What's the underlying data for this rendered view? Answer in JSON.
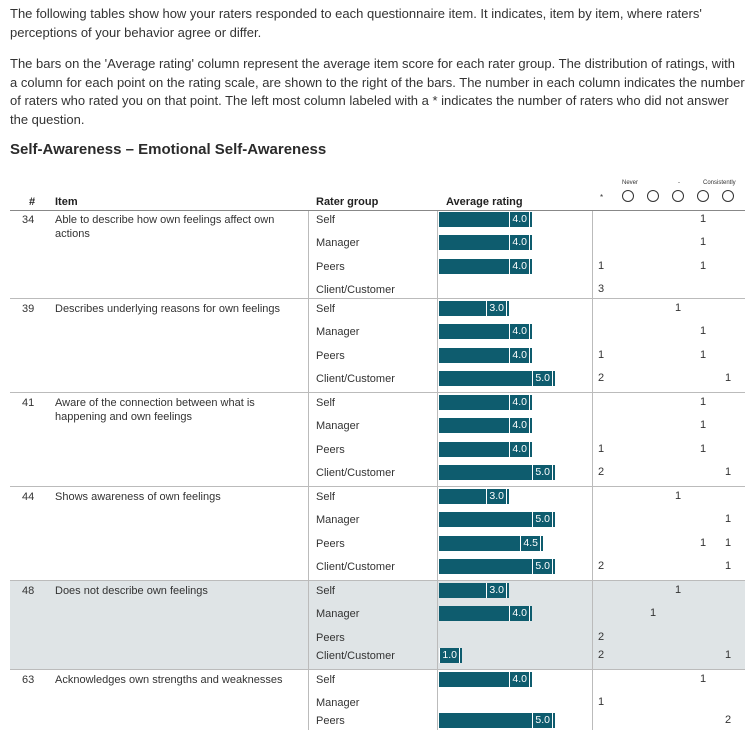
{
  "intro": {
    "p1": "The following tables show how your raters responded to each questionnaire item. It indicates, item by item, where raters' perceptions of your behavior agree or differ.",
    "p2": "The bars on the 'Average rating' column represent the average item score for each rater group. The distribution of ratings, with a column for each point on the rating scale, are shown to the right of the bars. The number in each column indicates the number of raters who rated you on that point. The left most column labeled with a * indicates the number of raters who did not answer the question."
  },
  "section_title": "Self-Awareness – Emotional Self-Awareness",
  "scale": {
    "never": "Never",
    "mid": "-",
    "consistently": "Consistently",
    "no_answer": "*"
  },
  "headers": {
    "num": "#",
    "item": "Item",
    "rater_group": "Rater group",
    "avg": "Average rating"
  },
  "scale_max": 5,
  "items": [
    {
      "num": "34",
      "text": "Able to describe how own feelings affect own actions",
      "shaded": false,
      "rows": [
        {
          "group": "Self",
          "avg": 4.0,
          "avg_label": "4.0",
          "counts": [
            "",
            "",
            "",
            "",
            "1",
            ""
          ]
        },
        {
          "group": "Manager",
          "avg": 4.0,
          "avg_label": "4.0",
          "counts": [
            "",
            "",
            "",
            "",
            "1",
            ""
          ]
        },
        {
          "group": "Peers",
          "avg": 4.0,
          "avg_label": "4.0",
          "counts": [
            "1",
            "",
            "",
            "",
            "1",
            ""
          ]
        },
        {
          "group": "Client/Customer",
          "avg": null,
          "avg_label": "",
          "counts": [
            "3",
            "",
            "",
            "",
            "",
            ""
          ]
        }
      ]
    },
    {
      "num": "39",
      "text": "Describes underlying reasons for own feelings",
      "shaded": false,
      "rows": [
        {
          "group": "Self",
          "avg": 3.0,
          "avg_label": "3.0",
          "counts": [
            "",
            "",
            "",
            "1",
            "",
            ""
          ]
        },
        {
          "group": "Manager",
          "avg": 4.0,
          "avg_label": "4.0",
          "counts": [
            "",
            "",
            "",
            "",
            "1",
            ""
          ]
        },
        {
          "group": "Peers",
          "avg": 4.0,
          "avg_label": "4.0",
          "counts": [
            "1",
            "",
            "",
            "",
            "1",
            ""
          ]
        },
        {
          "group": "Client/Customer",
          "avg": 5.0,
          "avg_label": "5.0",
          "counts": [
            "2",
            "",
            "",
            "",
            "",
            "1"
          ]
        }
      ]
    },
    {
      "num": "41",
      "text": "Aware of the connection between what is happening and own feelings",
      "shaded": false,
      "rows": [
        {
          "group": "Self",
          "avg": 4.0,
          "avg_label": "4.0",
          "counts": [
            "",
            "",
            "",
            "",
            "1",
            ""
          ]
        },
        {
          "group": "Manager",
          "avg": 4.0,
          "avg_label": "4.0",
          "counts": [
            "",
            "",
            "",
            "",
            "1",
            ""
          ]
        },
        {
          "group": "Peers",
          "avg": 4.0,
          "avg_label": "4.0",
          "counts": [
            "1",
            "",
            "",
            "",
            "1",
            ""
          ]
        },
        {
          "group": "Client/Customer",
          "avg": 5.0,
          "avg_label": "5.0",
          "counts": [
            "2",
            "",
            "",
            "",
            "",
            "1"
          ]
        }
      ]
    },
    {
      "num": "44",
      "text": "Shows awareness of own feelings",
      "shaded": false,
      "rows": [
        {
          "group": "Self",
          "avg": 3.0,
          "avg_label": "3.0",
          "counts": [
            "",
            "",
            "",
            "1",
            "",
            ""
          ]
        },
        {
          "group": "Manager",
          "avg": 5.0,
          "avg_label": "5.0",
          "counts": [
            "",
            "",
            "",
            "",
            "",
            "1"
          ]
        },
        {
          "group": "Peers",
          "avg": 4.5,
          "avg_label": "4.5",
          "counts": [
            "",
            "",
            "",
            "",
            "1",
            "1"
          ]
        },
        {
          "group": "Client/Customer",
          "avg": 5.0,
          "avg_label": "5.0",
          "counts": [
            "2",
            "",
            "",
            "",
            "",
            "1"
          ]
        }
      ]
    },
    {
      "num": "48",
      "text": "Does not describe own feelings",
      "shaded": true,
      "rows": [
        {
          "group": "Self",
          "avg": 3.0,
          "avg_label": "3.0",
          "counts": [
            "",
            "",
            "",
            "1",
            "",
            ""
          ]
        },
        {
          "group": "Manager",
          "avg": 4.0,
          "avg_label": "4.0",
          "counts": [
            "",
            "",
            "1",
            "",
            "",
            ""
          ]
        },
        {
          "group": "Peers",
          "avg": null,
          "avg_label": "",
          "counts": [
            "2",
            "",
            "",
            "",
            "",
            ""
          ]
        },
        {
          "group": "Client/Customer",
          "avg": 1.0,
          "avg_label": "1.0",
          "counts": [
            "2",
            "",
            "",
            "",
            "",
            "1"
          ]
        }
      ]
    },
    {
      "num": "63",
      "text": "Acknowledges own strengths and weaknesses",
      "shaded": false,
      "rows": [
        {
          "group": "Self",
          "avg": 4.0,
          "avg_label": "4.0",
          "counts": [
            "",
            "",
            "",
            "",
            "1",
            ""
          ]
        },
        {
          "group": "Manager",
          "avg": null,
          "avg_label": "",
          "counts": [
            "1",
            "",
            "",
            "",
            "",
            ""
          ]
        },
        {
          "group": "Peers",
          "avg": 5.0,
          "avg_label": "5.0",
          "counts": [
            "",
            "",
            "",
            "",
            "",
            "2"
          ]
        }
      ]
    }
  ]
}
